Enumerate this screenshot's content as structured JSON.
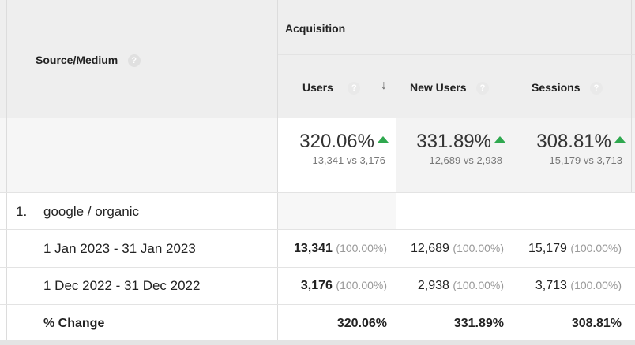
{
  "header": {
    "source_medium": "Source/Medium",
    "acquisition": "Acquisition",
    "columns": [
      {
        "label": "Users"
      },
      {
        "label": "New Users"
      },
      {
        "label": "Sessions"
      }
    ],
    "help_glyph": "?",
    "sort_glyph": "↓"
  },
  "summary": [
    {
      "pct": "320.06%",
      "compare": "13,341 vs 3,176"
    },
    {
      "pct": "331.89%",
      "compare": "12,689 vs 2,938"
    },
    {
      "pct": "308.81%",
      "compare": "15,179 vs 3,713"
    }
  ],
  "group": {
    "index": "1.",
    "name": "google / organic"
  },
  "rows": [
    {
      "label": "1 Jan 2023 - 31 Jan 2023",
      "cells": [
        {
          "value": "13,341",
          "pct": "(100.00%)"
        },
        {
          "value": "12,689",
          "pct": "(100.00%)"
        },
        {
          "value": "15,179",
          "pct": "(100.00%)"
        }
      ]
    },
    {
      "label": "1 Dec 2022 - 31 Dec 2022",
      "cells": [
        {
          "value": "3,176",
          "pct": "(100.00%)"
        },
        {
          "value": "2,938",
          "pct": "(100.00%)"
        },
        {
          "value": "3,713",
          "pct": "(100.00%)"
        }
      ]
    }
  ],
  "change_row": {
    "label": "% Change",
    "values": [
      "320.06%",
      "331.89%",
      "308.81%"
    ]
  },
  "colors": {
    "up": "#2fa84f",
    "header_bg": "#eeeeee"
  },
  "icons": {
    "help": "help-icon",
    "sort": "sort-descending-icon",
    "trend": "trend-up-icon"
  }
}
